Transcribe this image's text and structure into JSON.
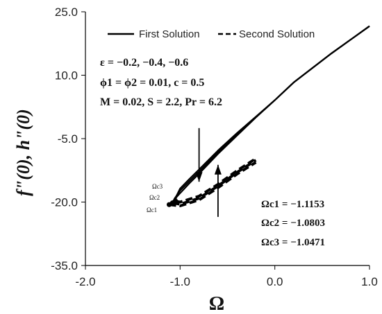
{
  "chart_data": {
    "type": "line",
    "xlabel": "Ω",
    "ylabel": "f\"(0), h\"(0)",
    "xlim": [
      -2.0,
      1.0
    ],
    "ylim": [
      -35.0,
      25.0
    ],
    "x_ticks": [
      "-2.0",
      "-1.0",
      "0.0",
      "1.0"
    ],
    "y_ticks": [
      "25.0",
      "10.0",
      "-5.0",
      "-20.0",
      "-35.0"
    ],
    "legend": {
      "placement": "top",
      "entries": [
        {
          "label": "First Solution",
          "style": "solid"
        },
        {
          "label": "Second Solution",
          "style": "dashed"
        }
      ]
    },
    "series": [
      {
        "name": "First Solution",
        "style": "solid",
        "x": [
          1.0,
          0.6,
          0.2,
          0.0,
          -0.2,
          -0.4,
          -0.6,
          -0.8,
          -0.9,
          -1.0,
          -1.08,
          -1.1153
        ],
        "y": [
          21.6,
          15.2,
          8.3,
          4.1,
          0.0,
          -4.3,
          -8.6,
          -13.3,
          -15.5,
          -17.9,
          -19.9,
          -20.6
        ]
      },
      {
        "name": "First Solution",
        "style": "solid",
        "x": [
          1.0,
          0.6,
          0.2,
          0.0,
          -0.2,
          -0.4,
          -0.6,
          -0.8,
          -0.9,
          -1.0,
          -1.06,
          -1.0803
        ],
        "y": [
          21.6,
          15.2,
          8.3,
          4.1,
          0.1,
          -4.0,
          -8.2,
          -12.8,
          -15.0,
          -17.3,
          -19.2,
          -20.2
        ]
      },
      {
        "name": "First Solution",
        "style": "solid",
        "x": [
          1.0,
          0.6,
          0.2,
          0.0,
          -0.2,
          -0.4,
          -0.6,
          -0.8,
          -0.9,
          -1.0,
          -1.04,
          -1.0471
        ],
        "y": [
          21.6,
          15.2,
          8.3,
          4.1,
          0.2,
          -3.7,
          -7.8,
          -12.3,
          -14.5,
          -16.8,
          -18.6,
          -19.8
        ]
      },
      {
        "name": "Second Solution",
        "style": "dashed",
        "x": [
          -1.1153,
          -1.0,
          -0.8,
          -0.6,
          -0.4,
          -0.2
        ],
        "y": [
          -20.6,
          -20.9,
          -19.5,
          -16.6,
          -13.4,
          -10.6
        ]
      },
      {
        "name": "Second Solution",
        "style": "dashed",
        "x": [
          -1.0803,
          -1.0,
          -0.8,
          -0.6,
          -0.4,
          -0.2
        ],
        "y": [
          -20.2,
          -20.5,
          -19.1,
          -16.2,
          -13.0,
          -10.1
        ]
      },
      {
        "name": "Second Solution",
        "style": "dashed",
        "x": [
          -1.0471,
          -1.0,
          -0.8,
          -0.6,
          -0.4,
          -0.2
        ],
        "y": [
          -19.8,
          -20.0,
          -18.6,
          -15.8,
          -12.6,
          -9.7
        ]
      }
    ],
    "critical_points": [
      {
        "label": "Ωc1",
        "x": -1.1153,
        "y": -20.6
      },
      {
        "label": "Ωc2",
        "x": -1.0803,
        "y": -20.2
      },
      {
        "label": "Ωc3",
        "x": -1.0471,
        "y": -19.8
      }
    ],
    "parameters": [
      "ε = −0.2, −0.4, −0.6",
      "ϕ1 = ϕ2 = 0.01, c = 0.5",
      "M = 0.02, S = 2.2, Pr = 6.2"
    ],
    "critical_values": [
      "Ωc1 = −1.1153",
      "Ωc2 = −1.0803",
      "Ωc3 = −1.0471"
    ],
    "curve_tags": [
      "Ωc3",
      "Ωc2",
      "Ωc1"
    ],
    "arrows": [
      {
        "direction": "down",
        "x": -0.8,
        "y_from": -2.5,
        "y_to": -15.2
      },
      {
        "direction": "up",
        "x": -0.6,
        "y_from": -23.5,
        "y_to": -11.2
      }
    ],
    "grid": false
  },
  "colors": {
    "line": "#000000",
    "axis": "#000000",
    "background": "#ffffff"
  }
}
